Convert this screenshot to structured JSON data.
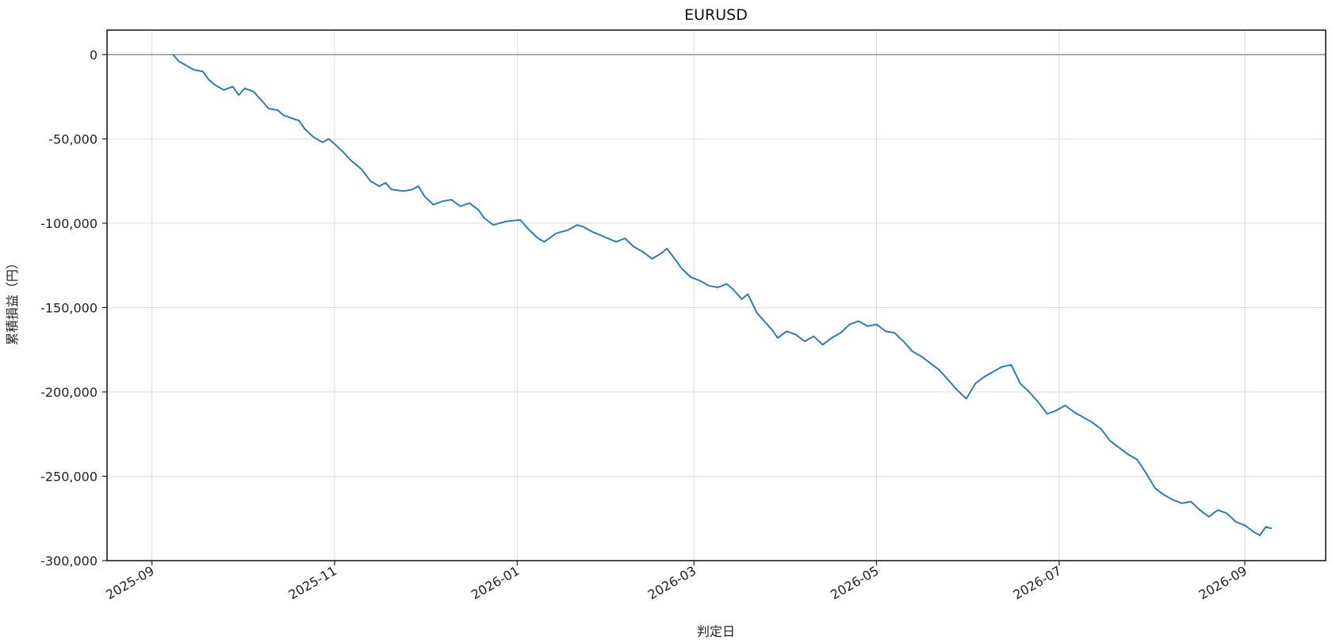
{
  "chart_data": {
    "type": "line",
    "title": "EURUSD",
    "xlabel": "判定日",
    "ylabel": "累積損益（円）",
    "x_ticks": [
      "2025-09-01",
      "2025-11-01",
      "2026-01-01",
      "2026-03-01",
      "2026-05-01",
      "2026-07-01",
      "2026-09-01"
    ],
    "x_tick_labels": [
      "2025-09",
      "2025-11",
      "2026-01",
      "2026-03",
      "2026-05",
      "2026-07",
      "2026-09"
    ],
    "y_ticks": [
      0,
      -50000,
      -100000,
      -150000,
      -200000,
      -250000,
      -300000
    ],
    "y_tick_labels": [
      "0",
      "-50,000",
      "-100,000",
      "-150,000",
      "-200,000",
      "-250,000",
      "-300,000"
    ],
    "xlim": [
      "2025-08-17",
      "2026-09-28"
    ],
    "ylim": [
      -300000,
      14500
    ],
    "grid": true,
    "reference_line_y": 0,
    "series": [
      {
        "color": "#2a7fb0",
        "points": [
          [
            "2025-09-08",
            0
          ],
          [
            "2025-09-10",
            -4000
          ],
          [
            "2025-09-12",
            -6000
          ],
          [
            "2025-09-15",
            -9000
          ],
          [
            "2025-09-18",
            -10000
          ],
          [
            "2025-09-20",
            -15000
          ],
          [
            "2025-09-22",
            -18000
          ],
          [
            "2025-09-25",
            -21000
          ],
          [
            "2025-09-28",
            -19000
          ],
          [
            "2025-09-30",
            -24000
          ],
          [
            "2025-10-02",
            -20000
          ],
          [
            "2025-10-05",
            -22000
          ],
          [
            "2025-10-08",
            -28000
          ],
          [
            "2025-10-10",
            -32000
          ],
          [
            "2025-10-13",
            -33000
          ],
          [
            "2025-10-15",
            -36000
          ],
          [
            "2025-10-18",
            -38000
          ],
          [
            "2025-10-20",
            -39000
          ],
          [
            "2025-10-22",
            -44000
          ],
          [
            "2025-10-25",
            -49000
          ],
          [
            "2025-10-28",
            -52000
          ],
          [
            "2025-10-30",
            -50000
          ],
          [
            "2025-11-01",
            -53000
          ],
          [
            "2025-11-04",
            -58000
          ],
          [
            "2025-11-06",
            -62000
          ],
          [
            "2025-11-08",
            -65000
          ],
          [
            "2025-11-10",
            -68000
          ],
          [
            "2025-11-13",
            -75000
          ],
          [
            "2025-11-16",
            -78000
          ],
          [
            "2025-11-18",
            -76000
          ],
          [
            "2025-11-20",
            -80000
          ],
          [
            "2025-11-24",
            -81000
          ],
          [
            "2025-11-27",
            -80000
          ],
          [
            "2025-11-29",
            -78000
          ],
          [
            "2025-12-01",
            -84000
          ],
          [
            "2025-12-04",
            -89000
          ],
          [
            "2025-12-07",
            -87000
          ],
          [
            "2025-12-10",
            -86000
          ],
          [
            "2025-12-13",
            -90000
          ],
          [
            "2025-12-16",
            -88000
          ],
          [
            "2025-12-19",
            -92000
          ],
          [
            "2025-12-21",
            -97000
          ],
          [
            "2025-12-24",
            -101000
          ],
          [
            "2025-12-28",
            -99000
          ],
          [
            "2026-01-02",
            -98000
          ],
          [
            "2026-01-05",
            -104000
          ],
          [
            "2026-01-08",
            -109000
          ],
          [
            "2026-01-10",
            -111000
          ],
          [
            "2026-01-14",
            -106000
          ],
          [
            "2026-01-18",
            -104000
          ],
          [
            "2026-01-21",
            -101000
          ],
          [
            "2026-01-23",
            -102000
          ],
          [
            "2026-01-26",
            -105000
          ],
          [
            "2026-01-30",
            -108000
          ],
          [
            "2026-02-03",
            -111000
          ],
          [
            "2026-02-06",
            -109000
          ],
          [
            "2026-02-09",
            -114000
          ],
          [
            "2026-02-12",
            -117000
          ],
          [
            "2026-02-15",
            -121000
          ],
          [
            "2026-02-18",
            -118000
          ],
          [
            "2026-02-20",
            -115000
          ],
          [
            "2026-02-23",
            -122000
          ],
          [
            "2026-02-25",
            -127000
          ],
          [
            "2026-02-28",
            -132000
          ],
          [
            "2026-03-03",
            -134000
          ],
          [
            "2026-03-06",
            -137000
          ],
          [
            "2026-03-09",
            -138000
          ],
          [
            "2026-03-12",
            -136000
          ],
          [
            "2026-03-14",
            -139000
          ],
          [
            "2026-03-17",
            -145000
          ],
          [
            "2026-03-19",
            -142000
          ],
          [
            "2026-03-22",
            -153000
          ],
          [
            "2026-03-25",
            -159000
          ],
          [
            "2026-03-27",
            -163000
          ],
          [
            "2026-03-29",
            -168000
          ],
          [
            "2026-04-01",
            -164000
          ],
          [
            "2026-04-04",
            -166000
          ],
          [
            "2026-04-07",
            -170000
          ],
          [
            "2026-04-10",
            -167000
          ],
          [
            "2026-04-13",
            -172000
          ],
          [
            "2026-04-16",
            -168000
          ],
          [
            "2026-04-19",
            -165000
          ],
          [
            "2026-04-22",
            -160000
          ],
          [
            "2026-04-25",
            -158000
          ],
          [
            "2026-04-28",
            -161000
          ],
          [
            "2026-05-01",
            -160000
          ],
          [
            "2026-05-04",
            -164000
          ],
          [
            "2026-05-07",
            -165000
          ],
          [
            "2026-05-10",
            -170000
          ],
          [
            "2026-05-13",
            -176000
          ],
          [
            "2026-05-16",
            -179000
          ],
          [
            "2026-05-19",
            -183000
          ],
          [
            "2026-05-22",
            -187000
          ],
          [
            "2026-05-25",
            -193000
          ],
          [
            "2026-05-28",
            -199000
          ],
          [
            "2026-05-31",
            -204000
          ],
          [
            "2026-06-03",
            -195000
          ],
          [
            "2026-06-06",
            -191000
          ],
          [
            "2026-06-09",
            -188000
          ],
          [
            "2026-06-12",
            -185000
          ],
          [
            "2026-06-15",
            -184000
          ],
          [
            "2026-06-18",
            -195000
          ],
          [
            "2026-06-21",
            -200000
          ],
          [
            "2026-06-24",
            -206000
          ],
          [
            "2026-06-27",
            -213000
          ],
          [
            "2026-06-30",
            -211000
          ],
          [
            "2026-07-03",
            -208000
          ],
          [
            "2026-07-06",
            -212000
          ],
          [
            "2026-07-09",
            -215000
          ],
          [
            "2026-07-12",
            -218000
          ],
          [
            "2026-07-15",
            -222000
          ],
          [
            "2026-07-18",
            -229000
          ],
          [
            "2026-07-21",
            -233000
          ],
          [
            "2026-07-24",
            -237000
          ],
          [
            "2026-07-27",
            -240000
          ],
          [
            "2026-07-30",
            -248000
          ],
          [
            "2026-08-02",
            -257000
          ],
          [
            "2026-08-05",
            -261000
          ],
          [
            "2026-08-08",
            -264000
          ],
          [
            "2026-08-11",
            -266000
          ],
          [
            "2026-08-14",
            -265000
          ],
          [
            "2026-08-17",
            -270000
          ],
          [
            "2026-08-20",
            -274000
          ],
          [
            "2026-08-23",
            -270000
          ],
          [
            "2026-08-26",
            -272000
          ],
          [
            "2026-08-29",
            -277000
          ],
          [
            "2026-09-01",
            -279000
          ],
          [
            "2026-09-04",
            -283000
          ],
          [
            "2026-09-06",
            -285000
          ],
          [
            "2026-09-08",
            -280000
          ],
          [
            "2026-09-10",
            -281000
          ]
        ]
      }
    ]
  }
}
